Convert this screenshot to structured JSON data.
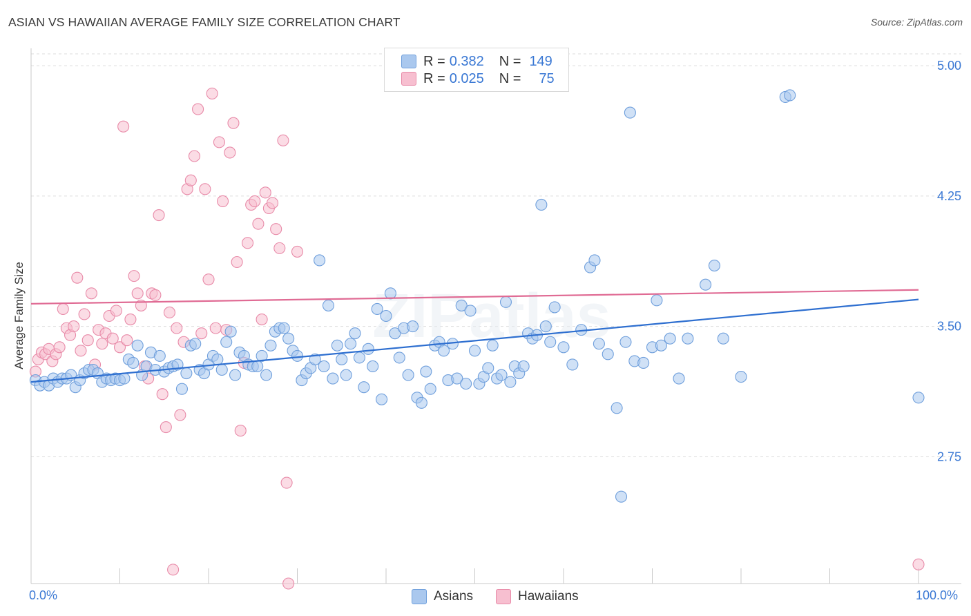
{
  "title": "ASIAN VS HAWAIIAN AVERAGE FAMILY SIZE CORRELATION CHART",
  "source": "Source: ZipAtlas.com",
  "watermark": "ZIPatlas",
  "legend": {
    "rows": [
      {
        "r_label": "R =",
        "r_value": "0.382",
        "n_label": "N =",
        "n_value": "149"
      },
      {
        "r_label": "R =",
        "r_value": "0.025",
        "n_label": "N =",
        "n_value": "75"
      }
    ]
  },
  "colors": {
    "asians_fill": "#aac8ee",
    "asians_stroke": "#6f9fdc",
    "asians_line": "#2e6fd0",
    "hawaiians_fill": "#f7bfd0",
    "hawaiians_stroke": "#e88aa8",
    "hawaiians_line": "#e06b94",
    "tick_text": "#3a78d4",
    "grid": "#dcdcdc"
  },
  "chart_data": {
    "type": "scatter",
    "title": "ASIAN VS HAWAIIAN AVERAGE FAMILY SIZE CORRELATION CHART",
    "xlabel": "",
    "ylabel": "Average Family Size",
    "xlim": [
      0,
      100
    ],
    "ylim": [
      2.02,
      5.1
    ],
    "x_tick_labels": [
      "0.0%",
      "100.0%"
    ],
    "y_ticks": [
      2.75,
      3.5,
      4.25,
      5.0
    ],
    "y_tick_labels": [
      "2.75",
      "3.50",
      "4.25",
      "5.00"
    ],
    "grid": "horizontal dashed",
    "legend_position": "bottom",
    "series": [
      {
        "name": "Asians",
        "trend": {
          "x": [
            0,
            100
          ],
          "y": [
            3.18,
            3.655
          ]
        },
        "points": [
          [
            0.5,
            3.19
          ],
          [
            1.0,
            3.16
          ],
          [
            1.5,
            3.18
          ],
          [
            2.0,
            3.16
          ],
          [
            2.5,
            3.2
          ],
          [
            3.0,
            3.18
          ],
          [
            3.5,
            3.2
          ],
          [
            4.0,
            3.2
          ],
          [
            4.5,
            3.22
          ],
          [
            5.0,
            3.15
          ],
          [
            5.5,
            3.19
          ],
          [
            6.0,
            3.23
          ],
          [
            6.5,
            3.25
          ],
          [
            7.0,
            3.25
          ],
          [
            7.5,
            3.23
          ],
          [
            8.0,
            3.18
          ],
          [
            8.5,
            3.2
          ],
          [
            9.0,
            3.19
          ],
          [
            9.5,
            3.2
          ],
          [
            10.0,
            3.19
          ],
          [
            10.5,
            3.2
          ],
          [
            11.0,
            3.31
          ],
          [
            11.5,
            3.29
          ],
          [
            12.0,
            3.39
          ],
          [
            12.5,
            3.22
          ],
          [
            13.0,
            3.27
          ],
          [
            13.5,
            3.35
          ],
          [
            14.0,
            3.25
          ],
          [
            14.5,
            3.33
          ],
          [
            15.0,
            3.24
          ],
          [
            15.5,
            3.26
          ],
          [
            16.0,
            3.27
          ],
          [
            16.5,
            3.28
          ],
          [
            17.0,
            3.14
          ],
          [
            17.5,
            3.23
          ],
          [
            18.0,
            3.39
          ],
          [
            18.5,
            3.4
          ],
          [
            19.0,
            3.25
          ],
          [
            19.5,
            3.23
          ],
          [
            20.0,
            3.28
          ],
          [
            20.5,
            3.33
          ],
          [
            21.0,
            3.31
          ],
          [
            21.5,
            3.25
          ],
          [
            22.0,
            3.41
          ],
          [
            22.5,
            3.47
          ],
          [
            23.0,
            3.22
          ],
          [
            23.5,
            3.35
          ],
          [
            24.0,
            3.33
          ],
          [
            24.5,
            3.28
          ],
          [
            25.0,
            3.27
          ],
          [
            25.5,
            3.27
          ],
          [
            26.0,
            3.33
          ],
          [
            26.5,
            3.22
          ],
          [
            27.0,
            3.39
          ],
          [
            27.5,
            3.47
          ],
          [
            28.0,
            3.49
          ],
          [
            28.5,
            3.49
          ],
          [
            29.0,
            3.43
          ],
          [
            29.5,
            3.36
          ],
          [
            30.0,
            3.33
          ],
          [
            30.5,
            3.19
          ],
          [
            31.0,
            3.23
          ],
          [
            31.5,
            3.26
          ],
          [
            32.0,
            3.31
          ],
          [
            32.5,
            3.88
          ],
          [
            33.0,
            3.27
          ],
          [
            33.5,
            3.62
          ],
          [
            34.0,
            3.2
          ],
          [
            34.5,
            3.39
          ],
          [
            35.0,
            3.31
          ],
          [
            35.5,
            3.22
          ],
          [
            36.0,
            3.4
          ],
          [
            36.5,
            3.46
          ],
          [
            37.0,
            3.32
          ],
          [
            37.5,
            3.15
          ],
          [
            38.0,
            3.37
          ],
          [
            38.5,
            3.27
          ],
          [
            39.0,
            3.6
          ],
          [
            39.5,
            3.08
          ],
          [
            40.0,
            3.56
          ],
          [
            40.5,
            3.69
          ],
          [
            41.0,
            3.46
          ],
          [
            41.5,
            3.32
          ],
          [
            42.0,
            3.49
          ],
          [
            42.5,
            3.22
          ],
          [
            43.0,
            3.5
          ],
          [
            43.5,
            3.09
          ],
          [
            44.0,
            3.06
          ],
          [
            44.5,
            3.24
          ],
          [
            45.0,
            3.14
          ],
          [
            45.5,
            3.39
          ],
          [
            46.0,
            3.41
          ],
          [
            46.5,
            3.36
          ],
          [
            47.0,
            3.19
          ],
          [
            47.5,
            3.4
          ],
          [
            48.0,
            3.2
          ],
          [
            48.5,
            3.62
          ],
          [
            49.0,
            3.17
          ],
          [
            49.5,
            3.59
          ],
          [
            50.0,
            3.36
          ],
          [
            50.5,
            3.17
          ],
          [
            51.0,
            3.21
          ],
          [
            51.5,
            3.26
          ],
          [
            52.0,
            3.39
          ],
          [
            52.5,
            3.2
          ],
          [
            53.0,
            3.22
          ],
          [
            53.5,
            3.64
          ],
          [
            54.0,
            3.18
          ],
          [
            54.5,
            3.27
          ],
          [
            55.0,
            3.23
          ],
          [
            55.5,
            3.27
          ],
          [
            56.0,
            3.46
          ],
          [
            56.5,
            3.43
          ],
          [
            57.0,
            3.45
          ],
          [
            57.5,
            4.2
          ],
          [
            58.0,
            3.5
          ],
          [
            58.5,
            3.41
          ],
          [
            59.0,
            3.61
          ],
          [
            60.0,
            3.38
          ],
          [
            61.0,
            3.28
          ],
          [
            62.0,
            3.48
          ],
          [
            63.0,
            3.84
          ],
          [
            63.5,
            3.88
          ],
          [
            64.0,
            3.4
          ],
          [
            65.0,
            3.34
          ],
          [
            66.0,
            3.03
          ],
          [
            66.5,
            2.52
          ],
          [
            67.0,
            3.41
          ],
          [
            67.5,
            4.73
          ],
          [
            68.0,
            3.3
          ],
          [
            69.0,
            3.29
          ],
          [
            70.0,
            3.38
          ],
          [
            70.5,
            3.65
          ],
          [
            71.0,
            3.39
          ],
          [
            72.0,
            3.43
          ],
          [
            73.0,
            3.2
          ],
          [
            74.0,
            3.43
          ],
          [
            76.0,
            3.74
          ],
          [
            77.0,
            3.85
          ],
          [
            78.0,
            3.43
          ],
          [
            80.0,
            3.21
          ],
          [
            85.0,
            4.82
          ],
          [
            85.5,
            4.83
          ],
          [
            100.0,
            3.09
          ]
        ]
      },
      {
        "name": "Hawaiians",
        "trend": {
          "x": [
            0,
            100
          ],
          "y": [
            3.63,
            3.71
          ]
        },
        "points": [
          [
            0.5,
            3.24
          ],
          [
            0.8,
            3.31
          ],
          [
            1.2,
            3.35
          ],
          [
            1.6,
            3.34
          ],
          [
            2.0,
            3.37
          ],
          [
            2.4,
            3.3
          ],
          [
            2.8,
            3.34
          ],
          [
            3.2,
            3.38
          ],
          [
            3.6,
            3.6
          ],
          [
            4.0,
            3.49
          ],
          [
            4.4,
            3.45
          ],
          [
            4.8,
            3.5
          ],
          [
            5.2,
            3.78
          ],
          [
            5.6,
            3.36
          ],
          [
            6.0,
            3.57
          ],
          [
            6.4,
            3.42
          ],
          [
            6.8,
            3.69
          ],
          [
            7.2,
            3.28
          ],
          [
            7.6,
            3.48
          ],
          [
            8.0,
            3.4
          ],
          [
            8.4,
            3.46
          ],
          [
            8.8,
            3.56
          ],
          [
            9.2,
            3.43
          ],
          [
            9.6,
            3.59
          ],
          [
            10.0,
            3.38
          ],
          [
            10.4,
            4.65
          ],
          [
            10.8,
            3.42
          ],
          [
            11.2,
            3.54
          ],
          [
            11.6,
            3.79
          ],
          [
            12.0,
            3.69
          ],
          [
            12.4,
            3.62
          ],
          [
            12.8,
            3.27
          ],
          [
            13.2,
            3.2
          ],
          [
            13.6,
            3.69
          ],
          [
            14.0,
            3.68
          ],
          [
            14.4,
            4.14
          ],
          [
            14.8,
            3.11
          ],
          [
            15.2,
            2.92
          ],
          [
            15.6,
            3.58
          ],
          [
            16.0,
            2.1
          ],
          [
            16.4,
            3.49
          ],
          [
            16.8,
            2.99
          ],
          [
            17.2,
            3.41
          ],
          [
            17.6,
            4.29
          ],
          [
            18.0,
            4.34
          ],
          [
            18.4,
            4.48
          ],
          [
            18.8,
            4.75
          ],
          [
            19.2,
            3.46
          ],
          [
            19.6,
            4.29
          ],
          [
            20.0,
            3.77
          ],
          [
            20.4,
            4.84
          ],
          [
            20.8,
            3.49
          ],
          [
            21.2,
            4.56
          ],
          [
            21.6,
            4.22
          ],
          [
            22.0,
            3.48
          ],
          [
            22.4,
            4.5
          ],
          [
            22.8,
            4.67
          ],
          [
            23.2,
            3.87
          ],
          [
            23.6,
            2.9
          ],
          [
            24.0,
            3.29
          ],
          [
            24.4,
            3.98
          ],
          [
            24.8,
            4.2
          ],
          [
            25.2,
            4.22
          ],
          [
            25.6,
            4.09
          ],
          [
            26.0,
            3.54
          ],
          [
            26.4,
            4.27
          ],
          [
            26.8,
            4.18
          ],
          [
            27.2,
            4.21
          ],
          [
            27.6,
            4.06
          ],
          [
            28.0,
            3.95
          ],
          [
            28.4,
            4.57
          ],
          [
            28.8,
            2.6
          ],
          [
            29.0,
            2.02
          ],
          [
            30.0,
            3.93
          ],
          [
            100.0,
            2.13
          ]
        ]
      }
    ]
  }
}
